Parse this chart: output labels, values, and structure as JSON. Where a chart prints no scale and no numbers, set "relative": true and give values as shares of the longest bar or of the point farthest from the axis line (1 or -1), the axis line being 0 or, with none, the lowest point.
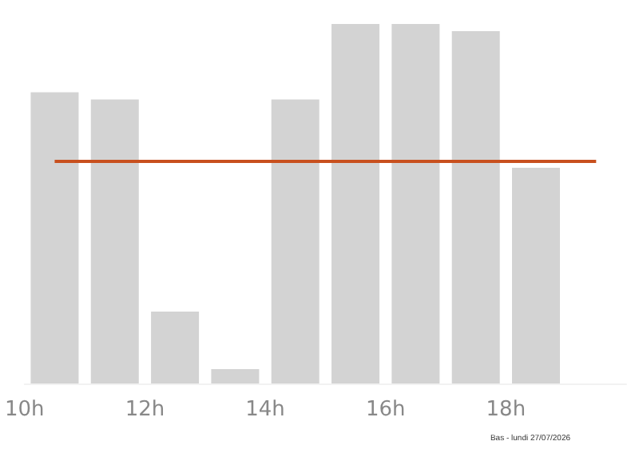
{
  "chart_data": {
    "type": "bar",
    "relative": true,
    "x": [
      10.5,
      11.5,
      12.5,
      13.5,
      14.5,
      15.5,
      16.5,
      17.5,
      18.5,
      19.5
    ],
    "values": [
      0.81,
      0.79,
      0.2,
      0.04,
      0.79,
      1,
      1,
      0.98,
      0.6,
      0
    ],
    "color": "#d3d3d3",
    "xlim": [
      10,
      20
    ],
    "xticks": [
      {
        "value": 10,
        "label": "10h"
      },
      {
        "value": 12,
        "label": "12h"
      },
      {
        "value": 14,
        "label": "14h"
      },
      {
        "value": 16,
        "label": "16h"
      },
      {
        "value": 18,
        "label": "18h"
      }
    ],
    "ref_lines": [
      {
        "axis": "y",
        "value": 0.62,
        "color": "#c8501e"
      }
    ],
    "annotations": [
      "Bas - lundi 27/07/2026"
    ],
    "grid": false
  }
}
